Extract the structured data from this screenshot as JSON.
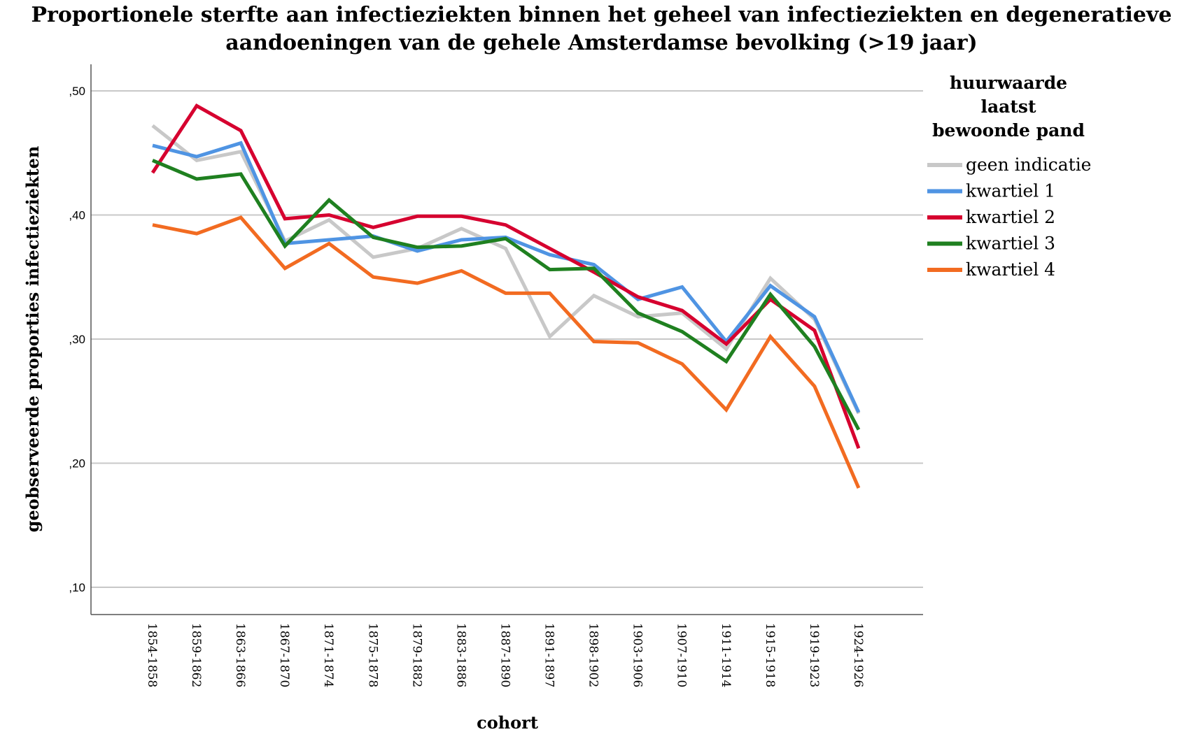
{
  "chart_data": {
    "type": "line",
    "title_line1": "Proportionele sterfte aan infectieziekten binnen het geheel van infectieziekten en degeneratieve",
    "title_line2": "aandoeningen van de gehele Amsterdamse bevolking (>19 jaar)",
    "xlabel": "cohort",
    "ylabel": "geobserveerde proporties infectieziekten",
    "ylim": [
      0.08,
      0.52
    ],
    "yticks": [
      0.1,
      0.2,
      0.3,
      0.4,
      0.5
    ],
    "ytick_labels": [
      ",10",
      ",20",
      ",30",
      ",40",
      ",50"
    ],
    "grid": true,
    "legend_title": [
      "huurwaarde",
      "laatst",
      "bewoonde pand"
    ],
    "legend_placement": "right",
    "categories": [
      "1854-1858",
      "1859-1862",
      "1863-1866",
      "1867-1870",
      "1871-1874",
      "1875-1878",
      "1879-1882",
      "1883-1886",
      "1887-1890",
      "1891-1897",
      "1898-1902",
      "1903-1906",
      "1907-1910",
      "1911-1914",
      "1915-1918",
      "1919-1923",
      "1924-1926"
    ],
    "series": [
      {
        "name": "geen indicatie",
        "color": "#c8c8c8",
        "values": [
          0.472,
          0.444,
          0.451,
          0.379,
          0.396,
          0.366,
          0.373,
          0.389,
          0.373,
          0.302,
          0.335,
          0.318,
          0.321,
          0.292,
          0.349,
          0.316,
          0.24
        ]
      },
      {
        "name": "kwartiel 1",
        "color": "#4f94e3",
        "values": [
          0.456,
          0.447,
          0.458,
          0.377,
          0.38,
          0.383,
          0.371,
          0.38,
          0.382,
          0.368,
          0.36,
          0.332,
          0.342,
          0.298,
          0.343,
          0.318,
          0.241
        ]
      },
      {
        "name": "kwartiel 2",
        "color": "#d6002f",
        "values": [
          0.434,
          0.488,
          0.468,
          0.397,
          0.4,
          0.39,
          0.399,
          0.399,
          0.392,
          0.373,
          0.354,
          0.334,
          0.323,
          0.296,
          0.332,
          0.307,
          0.212
        ]
      },
      {
        "name": "kwartiel 3",
        "color": "#1f8020",
        "values": [
          0.444,
          0.429,
          0.433,
          0.375,
          0.412,
          0.382,
          0.374,
          0.375,
          0.381,
          0.356,
          0.357,
          0.321,
          0.306,
          0.282,
          0.336,
          0.294,
          0.227
        ]
      },
      {
        "name": "kwartiel 4",
        "color": "#f26b21",
        "values": [
          0.392,
          0.385,
          0.398,
          0.357,
          0.377,
          0.35,
          0.345,
          0.355,
          0.337,
          0.337,
          0.298,
          0.297,
          0.28,
          0.243,
          0.302,
          0.262,
          0.18
        ]
      }
    ]
  }
}
